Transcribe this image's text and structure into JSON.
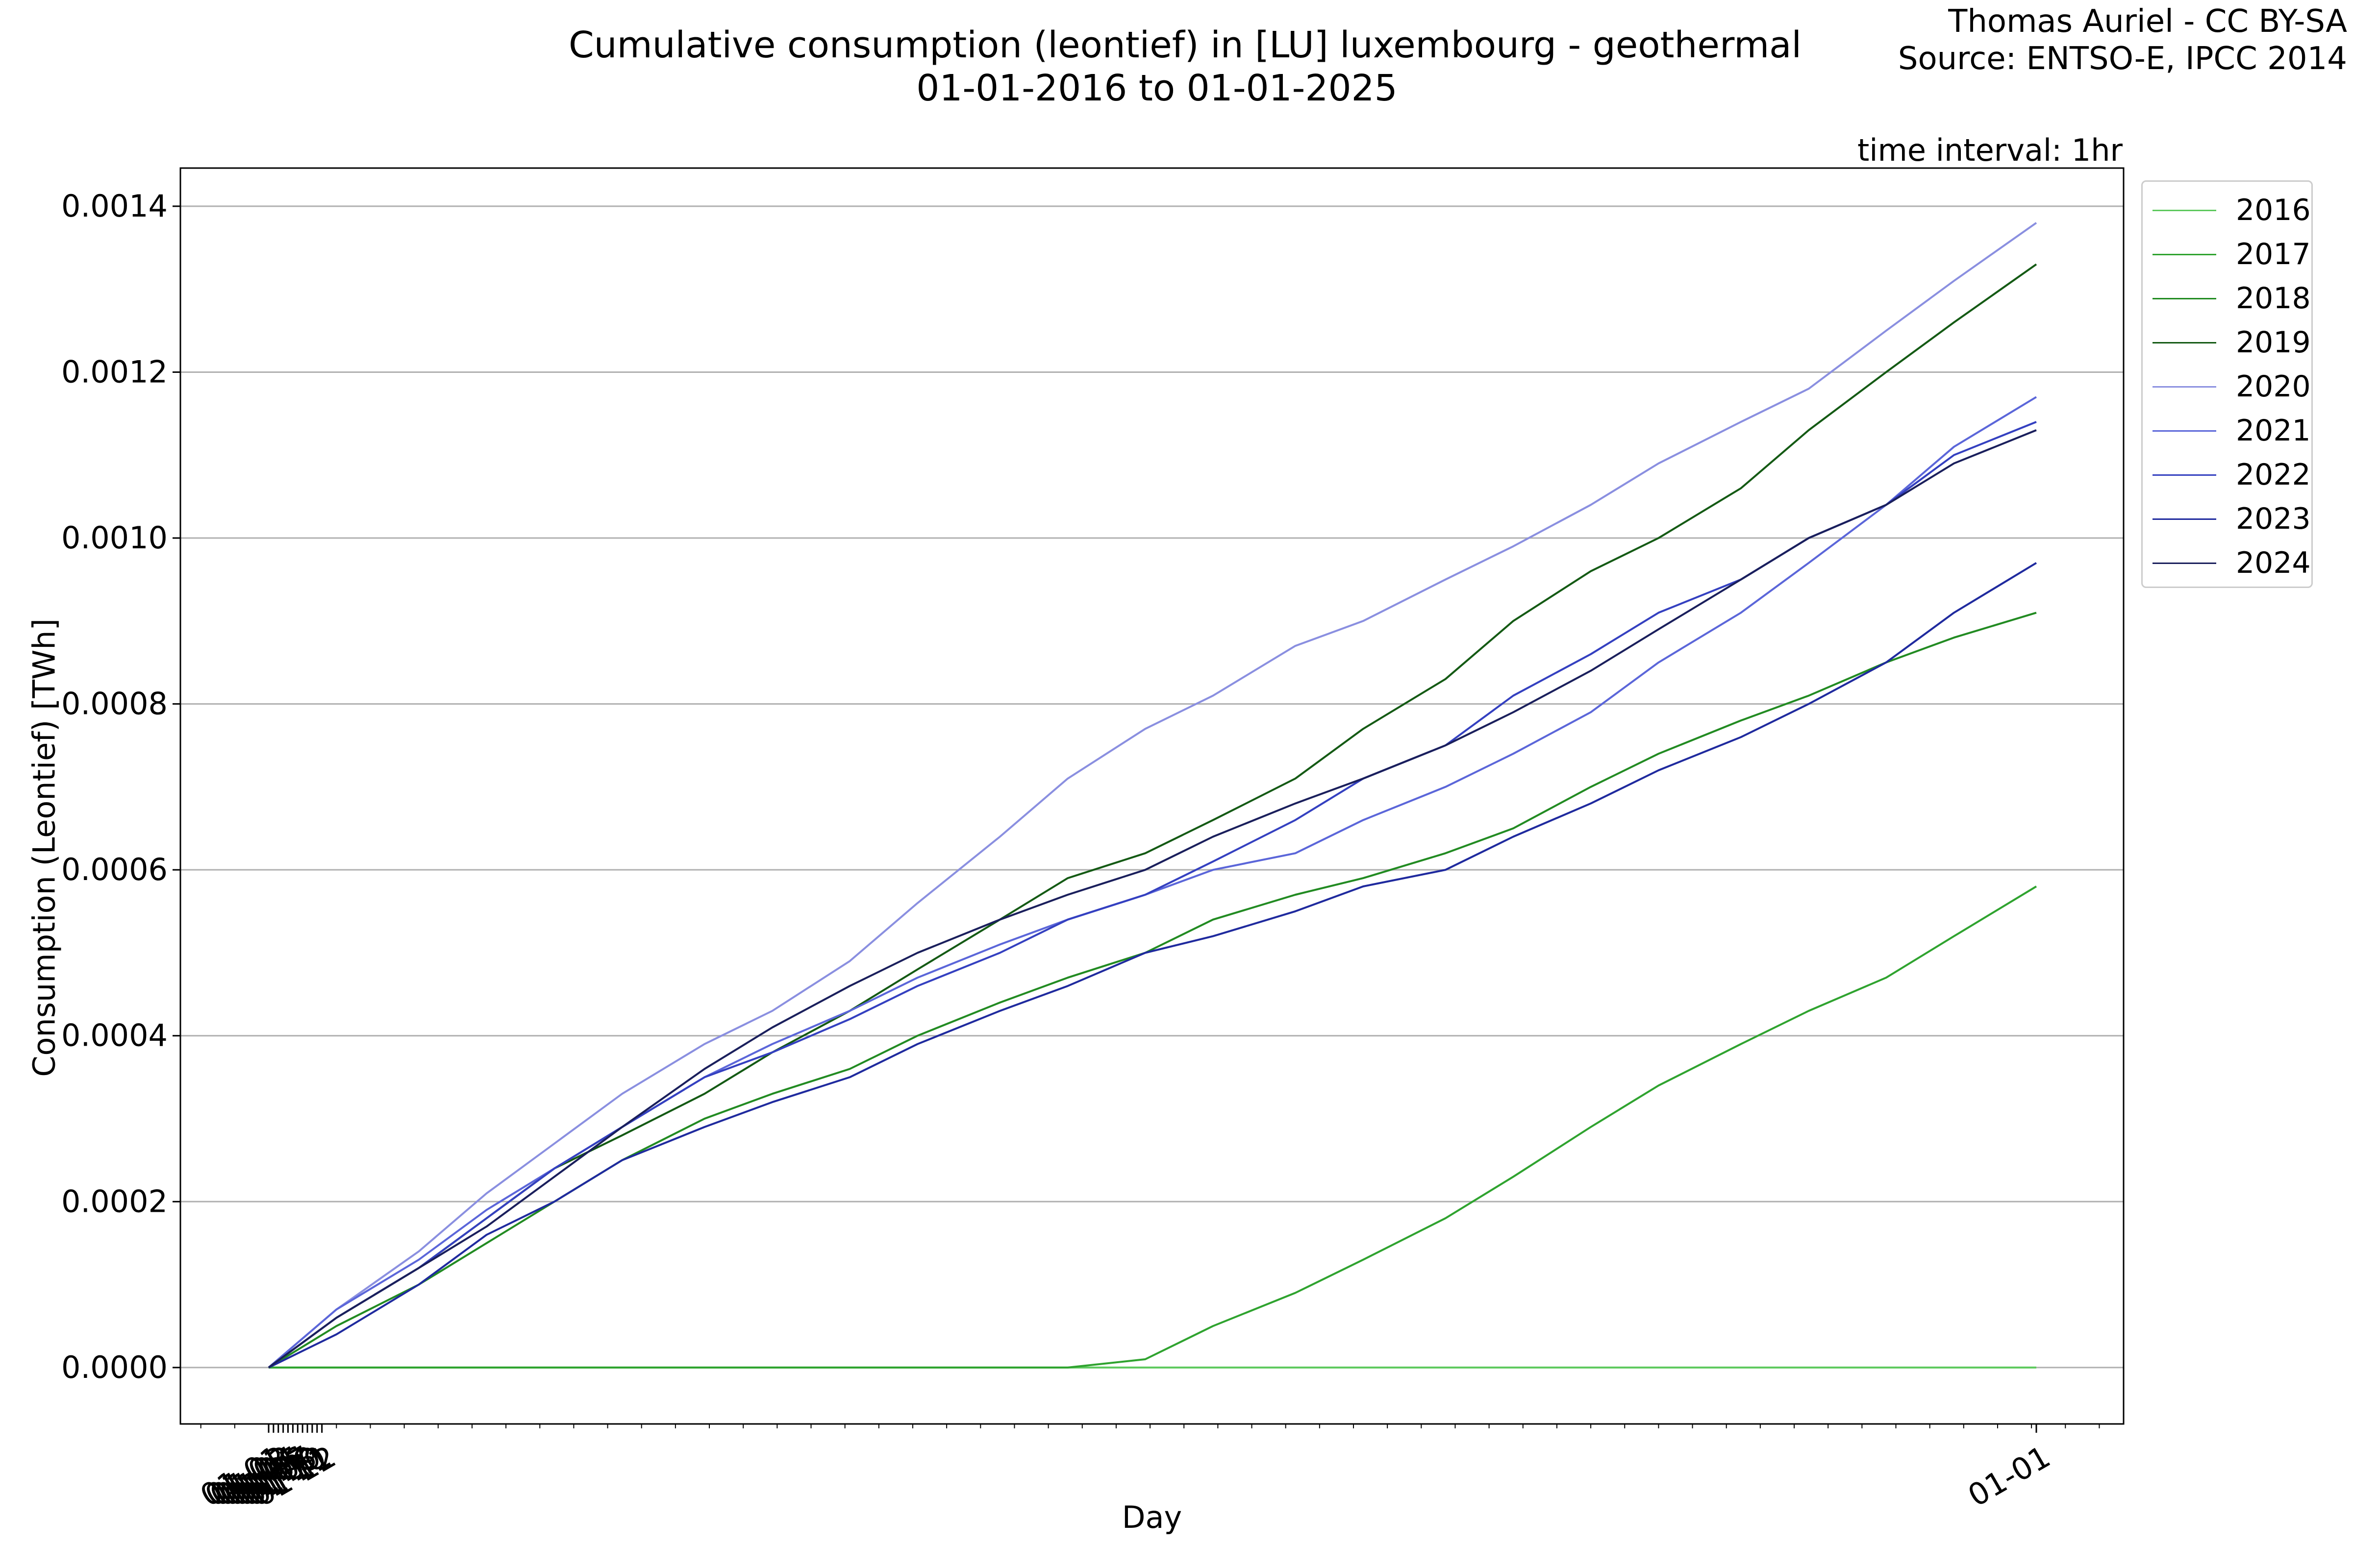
{
  "header": {
    "title_line1": "Cumulative consumption (leontief) in [LU] luxembourg - geothermal",
    "title_line2": "01-01-2016 to 01-01-2025",
    "attribution_line1": "Thomas Auriel - CC BY-SA",
    "attribution_line2": "Source: ENTSO-E, IPCC 2014",
    "interval_note": "time interval: 1hr"
  },
  "chart_data": {
    "type": "line",
    "title": "Cumulative consumption (leontief) in [LU] luxembourg - geothermal",
    "subtitle": "01-01-2016 to 01-01-2025",
    "xlabel": "Day",
    "ylabel": "Consumption (Leontief) [TWh]",
    "x_ticks": [
      "01-01",
      "01-02",
      "01-03",
      "01-04",
      "01-05",
      "01-06",
      "01-07",
      "01-08",
      "01-09",
      "01-10",
      "01-11",
      "01-12",
      "01-01"
    ],
    "y_ticks": [
      "0.0000",
      "0.0002",
      "0.0004",
      "0.0006",
      "0.0008",
      "0.0010",
      "0.0012",
      "0.0014"
    ],
    "ylim": [
      -6.8e-05,
      0.001446
    ],
    "xlim": [
      "12-13",
      "01-17"
    ],
    "grid": "horizontal",
    "legend_position": "outside-right",
    "x": [
      "01-01",
      "01-15",
      "02-01",
      "02-15",
      "03-01",
      "03-15",
      "04-01",
      "04-15",
      "05-01",
      "05-15",
      "06-01",
      "06-15",
      "07-01",
      "07-15",
      "08-01",
      "08-15",
      "09-01",
      "09-15",
      "10-01",
      "10-15",
      "11-01",
      "11-15",
      "12-01",
      "12-15",
      "01-01"
    ],
    "series": [
      {
        "name": "2016",
        "color": "#5ec95e",
        "values": [
          0,
          0,
          0,
          0,
          0,
          0,
          0,
          0,
          0,
          0,
          0,
          0,
          0,
          0,
          0,
          0,
          0,
          0,
          0,
          0,
          0,
          0,
          0,
          0,
          0
        ]
      },
      {
        "name": "2017",
        "color": "#2fa32f",
        "values": [
          0,
          0,
          0,
          0,
          0,
          0,
          0,
          0,
          0,
          0,
          0,
          0,
          1e-05,
          5e-05,
          9e-05,
          0.00013,
          0.00018,
          0.00023,
          0.00029,
          0.00034,
          0.00039,
          0.00043,
          0.00047,
          0.00052,
          0.00058
        ]
      },
      {
        "name": "2018",
        "color": "#228b22",
        "values": [
          0,
          5e-05,
          0.0001,
          0.00015,
          0.0002,
          0.00025,
          0.0003,
          0.00033,
          0.00036,
          0.0004,
          0.00044,
          0.00047,
          0.0005,
          0.00054,
          0.00057,
          0.00059,
          0.00062,
          0.00065,
          0.0007,
          0.00074,
          0.00078,
          0.00081,
          0.00085,
          0.00088,
          0.00091
        ]
      },
      {
        "name": "2019",
        "color": "#145a14",
        "values": [
          0,
          6e-05,
          0.00012,
          0.00018,
          0.00024,
          0.00028,
          0.00033,
          0.00038,
          0.00043,
          0.00048,
          0.00054,
          0.00059,
          0.00062,
          0.00066,
          0.00071,
          0.00077,
          0.00083,
          0.0009,
          0.00096,
          0.001,
          0.00106,
          0.00113,
          0.0012,
          0.00126,
          0.00133
        ]
      },
      {
        "name": "2020",
        "color": "#8a8fe0",
        "values": [
          0,
          7e-05,
          0.00014,
          0.00021,
          0.00027,
          0.00033,
          0.00039,
          0.00043,
          0.00049,
          0.00056,
          0.00064,
          0.00071,
          0.00077,
          0.00081,
          0.00087,
          0.0009,
          0.00095,
          0.00099,
          0.00104,
          0.00109,
          0.00114,
          0.00118,
          0.00125,
          0.00131,
          0.00138
        ]
      },
      {
        "name": "2021",
        "color": "#5b66d9",
        "values": [
          0,
          7e-05,
          0.00013,
          0.00019,
          0.00024,
          0.00029,
          0.00035,
          0.00039,
          0.00043,
          0.00047,
          0.00051,
          0.00054,
          0.00057,
          0.0006,
          0.00062,
          0.00066,
          0.0007,
          0.00074,
          0.00079,
          0.00085,
          0.00091,
          0.00097,
          0.00104,
          0.00111,
          0.00117
        ]
      },
      {
        "name": "2022",
        "color": "#3440c0",
        "values": [
          0,
          6e-05,
          0.00012,
          0.00018,
          0.00024,
          0.00029,
          0.00035,
          0.00038,
          0.00042,
          0.00046,
          0.0005,
          0.00054,
          0.00057,
          0.00061,
          0.00066,
          0.00071,
          0.00075,
          0.00081,
          0.00086,
          0.00091,
          0.00095,
          0.001,
          0.00104,
          0.0011,
          0.00114
        ]
      },
      {
        "name": "2023",
        "color": "#1f2a9e",
        "values": [
          0,
          4e-05,
          0.0001,
          0.00016,
          0.0002,
          0.00025,
          0.00029,
          0.00032,
          0.00035,
          0.00039,
          0.00043,
          0.00046,
          0.0005,
          0.00052,
          0.00055,
          0.00058,
          0.0006,
          0.00064,
          0.00068,
          0.00072,
          0.00076,
          0.0008,
          0.00085,
          0.00091,
          0.00097
        ]
      },
      {
        "name": "2024",
        "color": "#1a1f5c",
        "values": [
          0,
          6e-05,
          0.00012,
          0.00017,
          0.00023,
          0.00029,
          0.00036,
          0.00041,
          0.00046,
          0.0005,
          0.00054,
          0.00057,
          0.0006,
          0.00064,
          0.00068,
          0.00071,
          0.00075,
          0.00079,
          0.00084,
          0.00089,
          0.00095,
          0.001,
          0.00104,
          0.00109,
          0.00113
        ]
      }
    ]
  }
}
